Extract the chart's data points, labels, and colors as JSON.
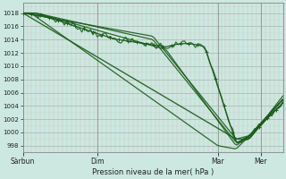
{
  "title": "Pression niveau de la mer( hPa )",
  "bg_color": "#cce8e0",
  "plot_bg_color": "#cce8e0",
  "line_color": "#1a5c1a",
  "ylim": [
    997,
    1019.5
  ],
  "yticks": [
    998,
    1000,
    1002,
    1004,
    1006,
    1008,
    1010,
    1012,
    1014,
    1016,
    1018
  ],
  "xtick_labels": [
    "Sàrbun",
    "Dim",
    "Mar",
    "Mer"
  ],
  "xtick_pos": [
    0.0,
    0.285,
    0.75,
    0.915
  ],
  "total_points": 120,
  "figsize": [
    3.2,
    2.0
  ],
  "dpi": 100
}
